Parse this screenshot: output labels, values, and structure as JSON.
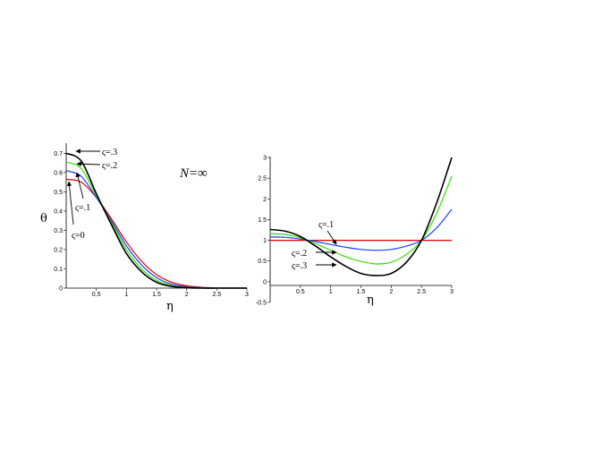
{
  "chart_data": [
    {
      "type": "line",
      "title": "",
      "xlabel": "η",
      "ylabel": "θ",
      "xlim": [
        0,
        3
      ],
      "ylim": [
        0,
        0.72
      ],
      "x_ticks": [
        "0.5",
        "1",
        "1.5",
        "2",
        "2.5",
        "3"
      ],
      "y_ticks": [
        "0",
        "0.1",
        "0.2",
        "0.3",
        "0.4",
        "0.5",
        "0.6",
        "0.7"
      ],
      "grid": false,
      "annotations": [
        "N=∞",
        "ς=.3",
        "ς=.2",
        "ς=.1",
        "ς=0"
      ],
      "x": [
        0,
        0.25,
        0.5,
        0.75,
        1,
        1.25,
        1.5,
        1.75,
        2,
        2.25,
        2.5,
        2.75,
        3
      ],
      "series": [
        {
          "name": "ς=0",
          "color": "#e00000",
          "values": [
            0.565,
            0.55,
            0.47,
            0.36,
            0.24,
            0.14,
            0.07,
            0.03,
            0.012,
            0.004,
            0.001,
            0,
            0
          ]
        },
        {
          "name": "ς=.1",
          "color": "#1f3fff",
          "values": [
            0.61,
            0.58,
            0.47,
            0.35,
            0.22,
            0.12,
            0.055,
            0.02,
            0.007,
            0.002,
            0,
            0,
            0
          ]
        },
        {
          "name": "ς=.2",
          "color": "#33dd00",
          "values": [
            0.655,
            0.62,
            0.48,
            0.34,
            0.2,
            0.1,
            0.04,
            0.013,
            0.004,
            0.001,
            0,
            0,
            0
          ]
        },
        {
          "name": "ς=.3",
          "color": "#000000",
          "values": [
            0.7,
            0.66,
            0.49,
            0.33,
            0.18,
            0.085,
            0.03,
            0.009,
            0.002,
            0,
            0,
            0,
            0
          ]
        }
      ]
    },
    {
      "type": "line",
      "title": "",
      "xlabel": "η",
      "ylabel": "",
      "xlim": [
        0,
        3
      ],
      "ylim": [
        -0.5,
        3
      ],
      "x_ticks": [
        "0.5",
        "1",
        "1.5",
        "2",
        "2.5",
        "3"
      ],
      "y_ticks": [
        "-0.5",
        "0",
        "0.5",
        "1",
        "1.5",
        "2",
        "2.5",
        "3"
      ],
      "grid": false,
      "annotations": [
        "ς=.1",
        "ς=.2",
        "ς=.3"
      ],
      "x": [
        0,
        0.25,
        0.5,
        0.75,
        1,
        1.25,
        1.5,
        1.75,
        2,
        2.25,
        2.5,
        2.75,
        3
      ],
      "series": [
        {
          "name": "",
          "color": "#e00000",
          "values": [
            1,
            1,
            1,
            1,
            1,
            1,
            1,
            1,
            1,
            1,
            1,
            1,
            1
          ]
        },
        {
          "name": "ς=.1",
          "color": "#1f3fff",
          "values": [
            1.08,
            1.07,
            1.03,
            0.97,
            0.9,
            0.83,
            0.78,
            0.76,
            0.78,
            0.86,
            1.0,
            1.3,
            1.75
          ]
        },
        {
          "name": "ς=.2",
          "color": "#33dd00",
          "values": [
            1.16,
            1.14,
            1.06,
            0.92,
            0.76,
            0.6,
            0.49,
            0.43,
            0.47,
            0.66,
            1.0,
            1.65,
            2.55
          ]
        },
        {
          "name": "ς=.3",
          "color": "#000000",
          "values": [
            1.26,
            1.22,
            1.09,
            0.86,
            0.6,
            0.37,
            0.2,
            0.15,
            0.2,
            0.47,
            1.0,
            1.9,
            3.0
          ]
        }
      ]
    }
  ],
  "panel2_ann": [
    "ς=.1",
    "ς=.2",
    "ς=.3"
  ]
}
